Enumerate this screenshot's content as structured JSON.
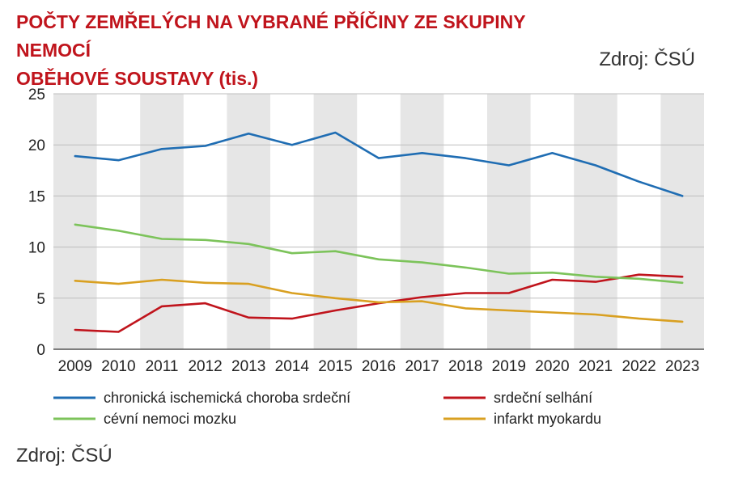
{
  "header": {
    "title_line1": "POČTY ZEMŘELÝCH NA VYBRANÉ PŘÍČINY ZE SKUPINY NEMOCÍ",
    "title_line2": "OBĚHOVÉ SOUSTAVY (tis.)",
    "source_top": "Zdroj: ČSÚ"
  },
  "footer": {
    "source": "Zdroj: ČSÚ"
  },
  "chart_data": {
    "type": "line",
    "title": "POČTY ZEMŘELÝCH NA VYBRANÉ PŘÍČINY ZE SKUPINY NEMOCÍ OBĚHOVÉ SOUSTAVY (tis.)",
    "x": [
      "2009",
      "2010",
      "2011",
      "2012",
      "2013",
      "2014",
      "2015",
      "2016",
      "2017",
      "2018",
      "2019",
      "2020",
      "2021",
      "2022",
      "2023"
    ],
    "ylim": [
      0,
      25
    ],
    "yticks": [
      0,
      5,
      10,
      15,
      20,
      25
    ],
    "grid": "alternating vertical bands",
    "legend_position": "bottom",
    "series": [
      {
        "name": "chronická ischemická choroba srdeční",
        "color": "#1f6db3",
        "values": [
          18.9,
          18.5,
          19.6,
          19.9,
          21.1,
          20.0,
          21.2,
          18.7,
          19.2,
          18.7,
          18.0,
          19.2,
          18.0,
          16.4,
          15.0
        ]
      },
      {
        "name": "srdeční selhání",
        "color": "#c0141c",
        "values": [
          1.9,
          1.7,
          4.2,
          4.5,
          3.1,
          3.0,
          3.8,
          4.5,
          5.1,
          5.5,
          5.5,
          6.8,
          6.6,
          7.3,
          7.1
        ]
      },
      {
        "name": "cévní nemoci mozku",
        "color": "#7cc35a",
        "values": [
          12.2,
          11.6,
          10.8,
          10.7,
          10.3,
          9.4,
          9.6,
          8.8,
          8.5,
          8.0,
          7.4,
          7.5,
          7.1,
          6.9,
          6.5
        ]
      },
      {
        "name": "infarkt myokardu",
        "color": "#d9a021",
        "values": [
          6.7,
          6.4,
          6.8,
          6.5,
          6.4,
          5.5,
          5.0,
          4.6,
          4.7,
          4.0,
          3.8,
          3.6,
          3.4,
          3.0,
          2.7
        ]
      }
    ]
  }
}
